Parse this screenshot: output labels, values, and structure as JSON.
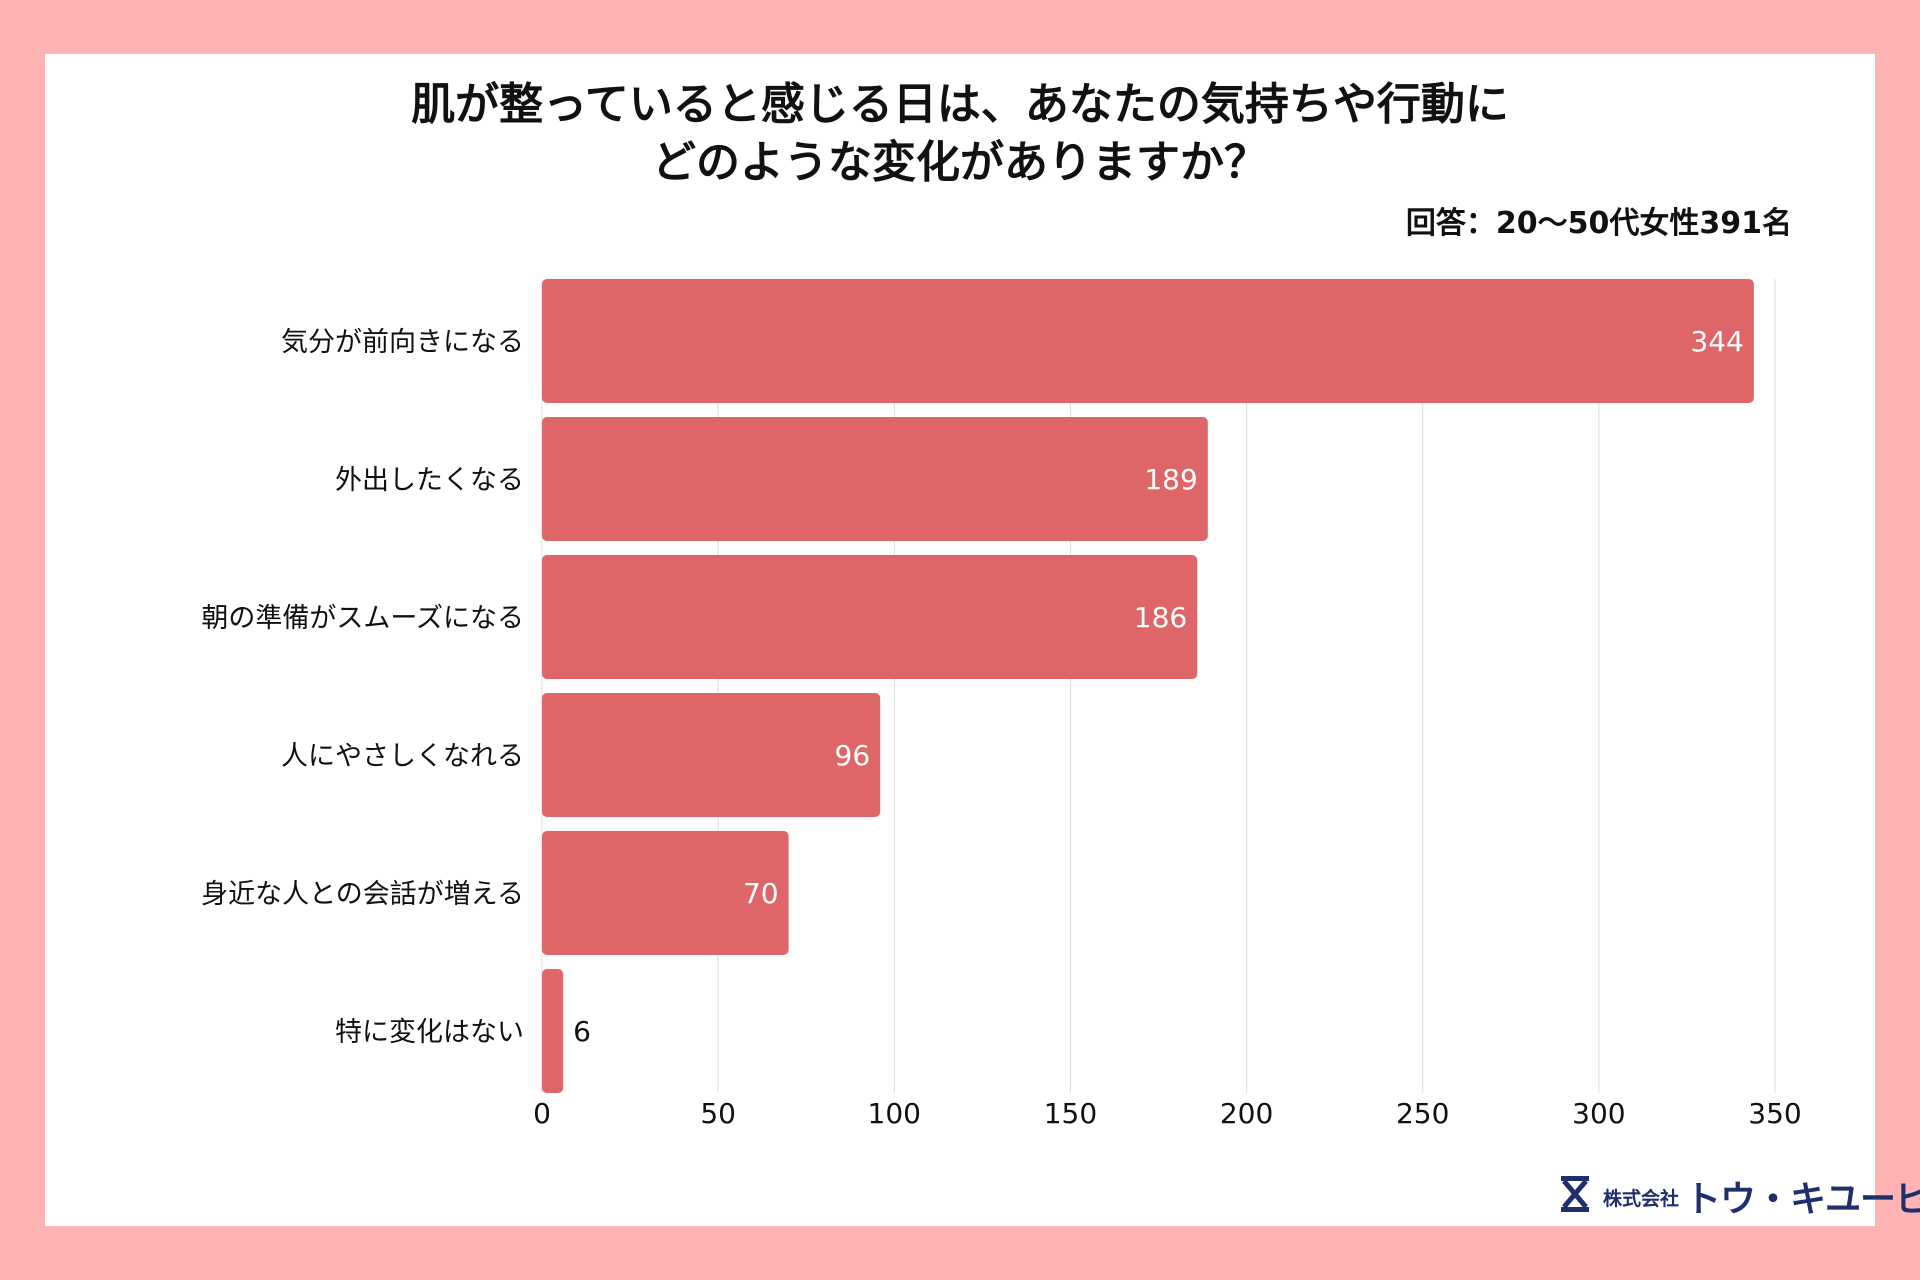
{
  "colors": {
    "frame": "#FFB3B3",
    "card": "#FFFFFF",
    "bar": "#DE6668",
    "grid": "#DDDDDD",
    "text": "#111111",
    "logo": "#1E2F6B"
  },
  "chart_data": {
    "type": "bar",
    "orientation": "horizontal",
    "title_lines": [
      "肌が整っていると感じる日は、あなたの気持ちや行動に",
      "どのような変化がありますか？"
    ],
    "subtitle": "回答：20〜50代女性391名",
    "categories": [
      "気分が前向きになる",
      "外出したくなる",
      "朝の準備がスムーズになる",
      "人にやさしくなれる",
      "身近な人との会話が増える",
      "特に変化はない"
    ],
    "values": [
      344,
      189,
      186,
      96,
      70,
      6
    ],
    "value_labels": [
      "344",
      "189",
      "186",
      "96",
      "70",
      "6"
    ],
    "xlim": [
      0,
      350
    ],
    "xticks": [
      0,
      50,
      100,
      150,
      200,
      250,
      300,
      350
    ],
    "xtick_labels": [
      "0",
      "50",
      "100",
      "150",
      "200",
      "250",
      "300",
      "350"
    ],
    "grid": true,
    "xlabel": "",
    "ylabel": ""
  },
  "logo": {
    "icon": "hourglass-logo-icon",
    "company": "株式会社",
    "brand": "トウ・キユーピー"
  }
}
